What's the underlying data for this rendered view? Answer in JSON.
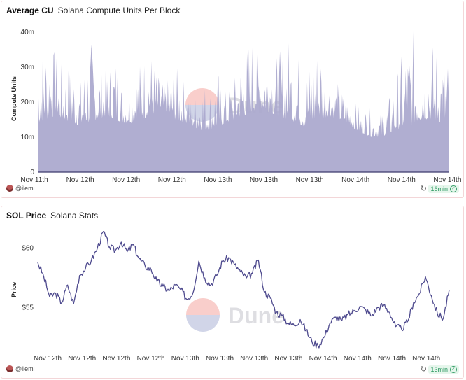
{
  "panels": {
    "cu": {
      "title": "Average CU",
      "subtitle": "Solana Compute Units Per Block",
      "author": "@ilemi",
      "updated": "16min",
      "watermark": "Dune"
    },
    "price": {
      "title": "SOL Price",
      "subtitle": "Solana Stats",
      "author": "@ilemi",
      "updated": "13min",
      "watermark": "Dune"
    }
  },
  "colors": {
    "area": "#a9a7cd",
    "line": "#4e4a8e",
    "badge": "#2f9a63"
  },
  "chart_data": [
    {
      "type": "area",
      "title": "Average CU",
      "subtitle": "Solana Compute Units Per Block",
      "xlabel": "",
      "ylabel": "Compute Units",
      "ylim": [
        0,
        42
      ],
      "y_unit": "m",
      "yticks": [
        "0",
        "10m",
        "20m",
        "30m",
        "40m"
      ],
      "ytick_values": [
        0,
        10,
        20,
        30,
        40
      ],
      "xticks": [
        "Nov 11th",
        "Nov 12th",
        "Nov 12th",
        "Nov 12th",
        "Nov 13th",
        "Nov 13th",
        "Nov 13th",
        "Nov 14th",
        "Nov 14th",
        "Nov 14th"
      ],
      "grid": false,
      "series": [
        {
          "x_segments": 9,
          "baseline": [
            14,
            15,
            16,
            15,
            14,
            13,
            14,
            15,
            16,
            15,
            14,
            14,
            15,
            16,
            17,
            16,
            15,
            14,
            13,
            12,
            12,
            13,
            14,
            15,
            16,
            17,
            18,
            17,
            16,
            15,
            14,
            13,
            14,
            15,
            16,
            15,
            14,
            12,
            11,
            10,
            10,
            11,
            12,
            13,
            14,
            15,
            15,
            14,
            13
          ],
          "peaks": [
            38,
            41,
            35,
            30,
            33,
            27,
            40,
            32,
            29,
            36,
            24,
            30,
            33,
            38,
            28,
            26,
            31,
            27,
            25,
            29,
            24,
            30,
            23,
            28,
            35,
            41,
            37,
            39,
            33,
            40,
            38,
            30,
            36,
            40,
            28,
            26,
            22,
            20,
            19,
            18,
            17,
            22,
            30,
            39,
            41,
            40,
            38,
            36,
            33
          ]
        }
      ]
    },
    {
      "type": "line",
      "title": "SOL Price",
      "subtitle": "Solana Stats",
      "xlabel": "",
      "ylabel": "Price",
      "ylim": [
        51.5,
        61.5
      ],
      "yticks": [
        "$55",
        "$60"
      ],
      "ytick_values": [
        55,
        60
      ],
      "xticks": [
        "Nov 12th",
        "Nov 12th",
        "Nov 12th",
        "Nov 12th",
        "Nov 13th",
        "Nov 13th",
        "Nov 13th",
        "Nov 13th",
        "Nov 14th",
        "Nov 14th",
        "Nov 14th",
        "Nov 14th"
      ],
      "grid": false,
      "series": [
        {
          "values": [
            58.8,
            57.6,
            55.9,
            56.2,
            55.4,
            56.9,
            55.3,
            57.7,
            58.3,
            59.0,
            60.0,
            61.4,
            60.1,
            59.8,
            60.5,
            59.7,
            60.3,
            59.1,
            58.5,
            58.2,
            57.2,
            56.8,
            56.4,
            56.9,
            56.5,
            55.7,
            56.2,
            58.9,
            57.5,
            56.9,
            57.7,
            58.9,
            59.2,
            58.6,
            58.0,
            57.5,
            57.9,
            59.0,
            56.3,
            55.8,
            54.6,
            54.3,
            53.7,
            53.5,
            54.0,
            53.1,
            52.1,
            51.8,
            52.5,
            53.7,
            54.2,
            53.9,
            54.4,
            54.7,
            55.1,
            54.8,
            54.3,
            55.0,
            55.2,
            54.6,
            53.4,
            53.2,
            53.8,
            55.4,
            56.2,
            57.6,
            56.0,
            54.5,
            54.1,
            56.5
          ]
        }
      ]
    }
  ]
}
